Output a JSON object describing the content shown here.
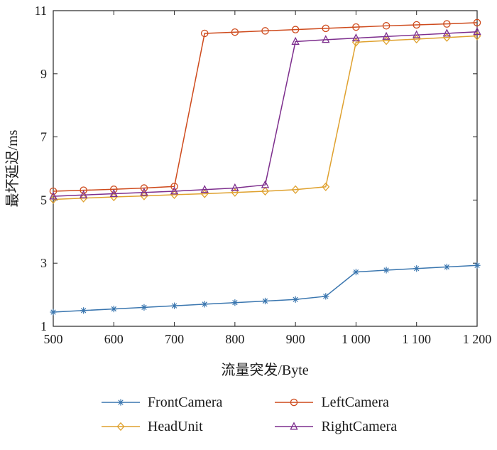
{
  "chart_data": {
    "type": "line",
    "title": "",
    "xlabel": "流量突发/Byte",
    "ylabel": "最坏延迟/ms",
    "xlim": [
      500,
      1200
    ],
    "ylim": [
      1,
      11
    ],
    "x_ticks": [
      500,
      600,
      700,
      800,
      900,
      1000,
      1100,
      1200
    ],
    "x_tick_labels": [
      "500",
      "600",
      "700",
      "800",
      "900",
      "1 000",
      "1 100",
      "1 200"
    ],
    "y_ticks": [
      1,
      3,
      5,
      7,
      9,
      11
    ],
    "y_tick_labels": [
      "1",
      "3",
      "5",
      "7",
      "9",
      "11"
    ],
    "grid": false,
    "legend_position": "bottom",
    "frame_color": "#262626",
    "x": [
      500,
      550,
      600,
      650,
      700,
      750,
      800,
      850,
      900,
      950,
      1000,
      1050,
      1100,
      1150,
      1200
    ],
    "series": [
      {
        "name": "FrontCamera",
        "color": "#3A76AF",
        "marker": "asterisk",
        "values": [
          1.45,
          1.5,
          1.55,
          1.6,
          1.65,
          1.7,
          1.75,
          1.8,
          1.85,
          1.95,
          2.72,
          2.78,
          2.83,
          2.88,
          2.93
        ]
      },
      {
        "name": "LeftCamera",
        "color": "#CE4A1C",
        "marker": "circle",
        "values": [
          5.28,
          5.31,
          5.34,
          5.38,
          5.43,
          10.28,
          10.32,
          10.36,
          10.4,
          10.44,
          10.48,
          10.52,
          10.55,
          10.58,
          10.62
        ]
      },
      {
        "name": "HeadUnit",
        "color": "#DFA12E",
        "marker": "diamond",
        "values": [
          5.02,
          5.06,
          5.1,
          5.13,
          5.17,
          5.2,
          5.24,
          5.28,
          5.33,
          5.42,
          10.0,
          10.05,
          10.1,
          10.15,
          10.2
        ]
      },
      {
        "name": "RightCamera",
        "color": "#7D2E8D",
        "marker": "triangle",
        "values": [
          5.12,
          5.16,
          5.2,
          5.24,
          5.28,
          5.33,
          5.38,
          5.48,
          10.02,
          10.08,
          10.13,
          10.18,
          10.23,
          10.28,
          10.33
        ]
      }
    ]
  }
}
